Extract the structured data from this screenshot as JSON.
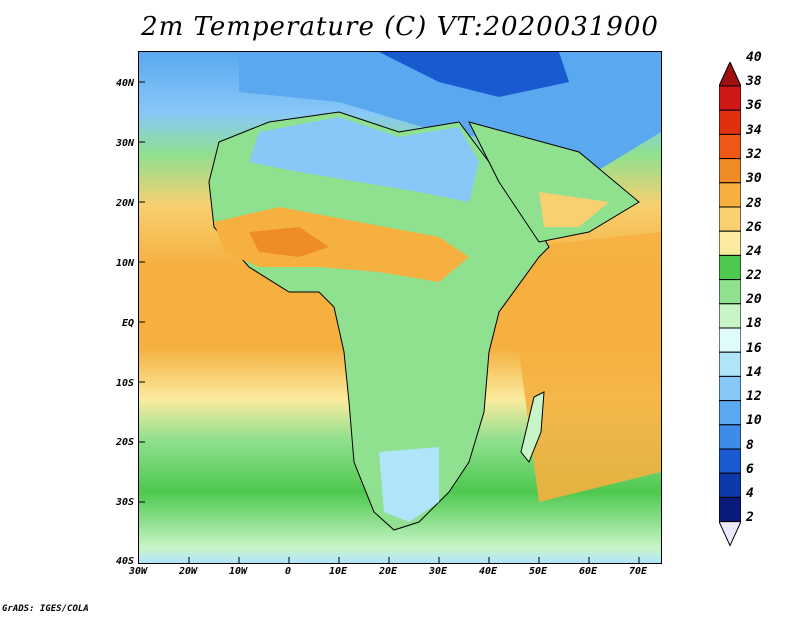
{
  "title": "2m Temperature (C) VT:2020031900",
  "credit": "GrADS: IGES/COLA",
  "map": {
    "lon_range": [
      -30,
      75
    ],
    "lat_range": [
      -40,
      45
    ],
    "lat_labels": [
      "40N",
      "30N",
      "20N",
      "10N",
      "EQ",
      "10S",
      "20S",
      "30S",
      "40S"
    ],
    "lat_values": [
      40,
      30,
      20,
      10,
      0,
      -10,
      -20,
      -30,
      -40
    ],
    "lon_labels": [
      "30W",
      "20W",
      "10W",
      "0",
      "10E",
      "20E",
      "30E",
      "40E",
      "50E",
      "60E",
      "70E"
    ],
    "lon_values": [
      -30,
      -20,
      -10,
      0,
      10,
      20,
      30,
      40,
      50,
      60,
      70
    ]
  },
  "colorbar": {
    "labels": [
      "40",
      "38",
      "36",
      "34",
      "32",
      "30",
      "28",
      "26",
      "24",
      "22",
      "20",
      "18",
      "16",
      "14",
      "12",
      "10",
      "8",
      "6",
      "4",
      "2"
    ],
    "colors": [
      "#a01010",
      "#d01818",
      "#e03010",
      "#f05818",
      "#f08c28",
      "#f5b040",
      "#f8d070",
      "#fbeb9e",
      "#4ec84e",
      "#8fe08f",
      "#c8f5c8",
      "#e0fbfb",
      "#b0e4f8",
      "#88c8f8",
      "#5aa8f0",
      "#3c8ce8",
      "#1a5ad0",
      "#0c3aa8",
      "#0a1a78",
      "#ece8ff"
    ],
    "top_arrow_color": "#a01010",
    "bottom_arrow_color": "#ece8ff"
  }
}
